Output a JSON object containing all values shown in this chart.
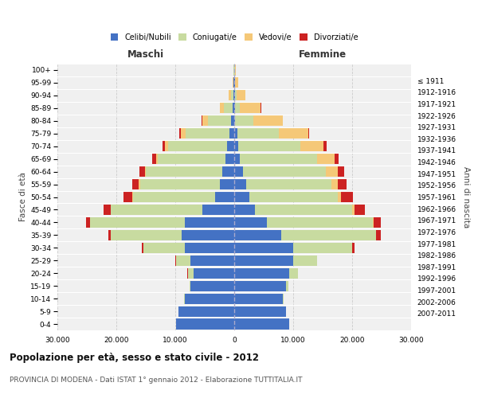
{
  "age_groups": [
    "0-4",
    "5-9",
    "10-14",
    "15-19",
    "20-24",
    "25-29",
    "30-34",
    "35-39",
    "40-44",
    "45-49",
    "50-54",
    "55-59",
    "60-64",
    "65-69",
    "70-74",
    "75-79",
    "80-84",
    "85-89",
    "90-94",
    "95-99",
    "100+"
  ],
  "birth_years": [
    "2007-2011",
    "2002-2006",
    "1997-2001",
    "1992-1996",
    "1987-1991",
    "1982-1986",
    "1977-1981",
    "1972-1976",
    "1967-1971",
    "1962-1966",
    "1957-1961",
    "1952-1956",
    "1947-1951",
    "1942-1946",
    "1937-1941",
    "1932-1936",
    "1927-1931",
    "1922-1926",
    "1917-1921",
    "1912-1916",
    "≤ 1911"
  ],
  "male_celibe": [
    9800,
    9400,
    8400,
    7400,
    6900,
    7400,
    8400,
    8900,
    8400,
    5400,
    3200,
    2500,
    2000,
    1500,
    1200,
    800,
    500,
    300,
    200,
    100,
    50
  ],
  "male_coniugato": [
    0,
    0,
    50,
    200,
    1000,
    2500,
    7000,
    12000,
    16000,
    15500,
    14000,
    13500,
    13000,
    11500,
    10000,
    7500,
    4000,
    1500,
    400,
    100,
    50
  ],
  "male_vedovo": [
    0,
    0,
    0,
    0,
    5,
    5,
    10,
    20,
    30,
    50,
    100,
    150,
    200,
    300,
    500,
    800,
    900,
    600,
    300,
    100,
    30
  ],
  "male_divorziato": [
    0,
    0,
    0,
    10,
    50,
    100,
    200,
    400,
    700,
    1200,
    1500,
    1200,
    900,
    600,
    400,
    200,
    100,
    50,
    20,
    10,
    5
  ],
  "female_celibe": [
    9300,
    8800,
    8300,
    8800,
    9300,
    10000,
    10000,
    8000,
    5500,
    3500,
    2500,
    2000,
    1500,
    1000,
    700,
    500,
    200,
    200,
    150,
    100,
    50
  ],
  "female_coniugata": [
    0,
    0,
    100,
    400,
    1500,
    4000,
    10000,
    16000,
    18000,
    16500,
    15000,
    14500,
    14000,
    13000,
    10500,
    7000,
    3000,
    800,
    200,
    50,
    20
  ],
  "female_vedova": [
    0,
    0,
    0,
    5,
    10,
    20,
    50,
    100,
    200,
    400,
    600,
    1000,
    2000,
    3000,
    4000,
    5000,
    5000,
    3500,
    1500,
    500,
    150
  ],
  "female_divorziata": [
    0,
    0,
    0,
    10,
    50,
    100,
    300,
    700,
    1200,
    1800,
    2000,
    1500,
    1200,
    700,
    500,
    200,
    100,
    50,
    20,
    10,
    5
  ],
  "colors": {
    "celibe": "#4472C4",
    "coniugato": "#c8dba0",
    "vedovo": "#f5c878",
    "divorziato": "#cc2222"
  },
  "xlim": 30000,
  "title": "Popolazione per età, sesso e stato civile - 2012",
  "subtitle": "PROVINCIA DI MODENA - Dati ISTAT 1° gennaio 2012 - Elaborazione TUTTITALIA.IT",
  "xlabel_left": "Maschi",
  "xlabel_right": "Femmine",
  "ylabel": "Fasce di età",
  "ylabel_right": "Anni di nascita",
  "background_color": "#f0f0f0",
  "grid_color": "#cccccc",
  "xticks": [
    -30000,
    -20000,
    -10000,
    0,
    10000,
    20000,
    30000
  ],
  "xtick_labels": [
    "30.000",
    "20.000",
    "10.000",
    "0",
    "10.000",
    "20.000",
    "30.000"
  ]
}
